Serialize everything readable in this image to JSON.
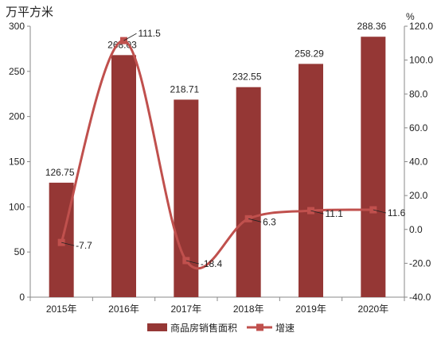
{
  "chart_data": {
    "type": "bar",
    "categories": [
      "2015年",
      "2016年",
      "2017年",
      "2018年",
      "2019年",
      "2020年"
    ],
    "series": [
      {
        "name": "商品房销售面积",
        "kind": "bar",
        "axis": "left",
        "color": "#953735",
        "values": [
          126.75,
          268.03,
          218.71,
          232.55,
          258.29,
          288.36
        ],
        "labels": [
          "126.75",
          "268.03",
          "218.71",
          "232.55",
          "258.29",
          "288.36"
        ]
      },
      {
        "name": "增速",
        "kind": "line",
        "axis": "right",
        "color": "#c0504d",
        "values": [
          -7.7,
          111.5,
          -18.4,
          6.3,
          11.1,
          11.6
        ],
        "labels": [
          "-7.7",
          "111.5",
          "-18.4",
          "6.3",
          "11.1",
          "11.6"
        ]
      }
    ],
    "ylabel": "万平方米",
    "y2label": "%",
    "ylim": [
      0,
      300
    ],
    "yticks": [
      "0",
      "50",
      "100",
      "150",
      "200",
      "250",
      "300"
    ],
    "y2lim": [
      -40,
      120
    ],
    "y2ticks": [
      "-40.0",
      "-20.0",
      "0.0",
      "20.0",
      "40.0",
      "60.0",
      "80.0",
      "100.0",
      "120.0"
    ],
    "legend_position": "bottom",
    "grid": false
  }
}
